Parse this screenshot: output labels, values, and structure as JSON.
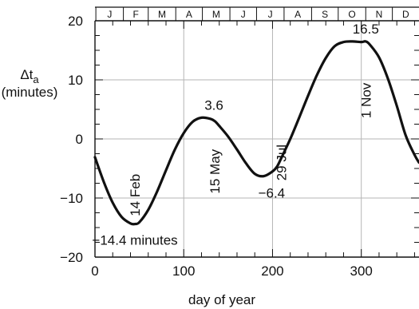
{
  "chart_data": {
    "type": "line",
    "xlabel": "day of year",
    "ylabel": "Δt",
    "ylabel_subscript": "a",
    "ylabel_units": "(minutes)",
    "xlim": [
      0,
      365
    ],
    "ylim": [
      -20,
      20
    ],
    "x_ticks": [
      0,
      100,
      200,
      300
    ],
    "y_ticks": [
      -20,
      -10,
      0,
      10,
      20
    ],
    "x_tick_labels": [
      "0",
      "100",
      "200",
      "300"
    ],
    "y_tick_labels": [
      "−20",
      "−10",
      "0",
      "10",
      "20"
    ],
    "grid": true,
    "months": [
      "J",
      "F",
      "M",
      "A",
      "M",
      "J",
      "J",
      "A",
      "S",
      "O",
      "N",
      "D"
    ],
    "month_starts": [
      1,
      32,
      60,
      91,
      121,
      152,
      182,
      213,
      244,
      274,
      305,
      335,
      366
    ],
    "series": [
      {
        "x": [
          0,
          10,
          20,
          30,
          40,
          45,
          50,
          60,
          70,
          80,
          90,
          100,
          110,
          120,
          130,
          135,
          140,
          150,
          160,
          170,
          180,
          190,
          200,
          205,
          210,
          220,
          230,
          240,
          250,
          260,
          270,
          280,
          290,
          300,
          305,
          310,
          320,
          330,
          340,
          350,
          360,
          365
        ],
        "y": [
          -3.1,
          -7.3,
          -10.8,
          -13.2,
          -14.3,
          -14.4,
          -14.1,
          -12.0,
          -8.9,
          -5.3,
          -1.8,
          1.0,
          2.9,
          3.6,
          3.4,
          3.0,
          2.2,
          0.4,
          -1.8,
          -4.1,
          -5.9,
          -6.3,
          -5.5,
          -4.7,
          -3.2,
          0.0,
          3.6,
          7.3,
          10.8,
          13.7,
          15.7,
          16.4,
          16.5,
          16.4,
          16.5,
          15.9,
          13.8,
          10.2,
          5.6,
          0.6,
          -2.7,
          -4.0
        ]
      }
    ],
    "annotations": [
      {
        "text": "16.5",
        "x": 305,
        "y": 16.5,
        "pos": "above"
      },
      {
        "text": "1 Nov",
        "x": 305,
        "y": 6.5,
        "rotate": true
      },
      {
        "text": "3.6",
        "x": 134,
        "y": 3.6,
        "pos": "above"
      },
      {
        "text": "15 May",
        "x": 135,
        "y": -5.5,
        "rotate": true
      },
      {
        "text": "29 Jul",
        "x": 210,
        "y": -4.0,
        "rotate": true
      },
      {
        "text": "−6.4",
        "x": 199,
        "y": -6.4,
        "pos": "below"
      },
      {
        "text": "14 Feb",
        "x": 45,
        "y": -9.5,
        "rotate": true
      },
      {
        "text": "−14.4 minutes",
        "x": 45,
        "y": -14.4,
        "pos": "below"
      }
    ]
  }
}
